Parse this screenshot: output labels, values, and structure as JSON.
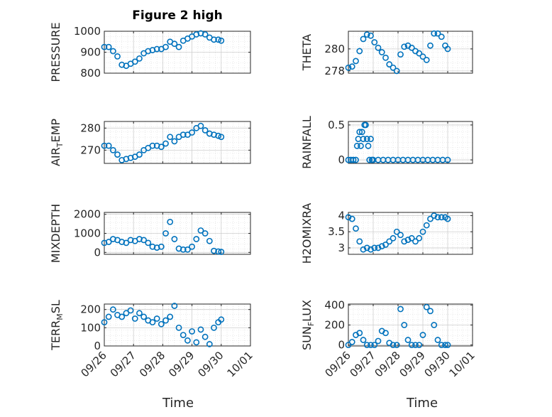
{
  "figure": {
    "title": "Figure 2 high",
    "xlabel_left": "Time",
    "xlabel_right": "Time",
    "marker_color": "#0072bd"
  },
  "chart_data": [
    {
      "type": "scatter",
      "ylabel": "PRESSURE",
      "ylim": [
        800,
        1000
      ],
      "yticks": [
        800,
        900,
        1000
      ],
      "ytick_labels": [
        "800",
        "900",
        "1000"
      ],
      "xlim": [
        0,
        5
      ],
      "xtick_labels": [],
      "x": [
        0.0,
        0.15,
        0.3,
        0.45,
        0.6,
        0.75,
        0.9,
        1.05,
        1.2,
        1.35,
        1.5,
        1.65,
        1.8,
        1.95,
        2.1,
        2.25,
        2.4,
        2.55,
        2.7,
        2.85,
        3.0,
        3.15,
        3.3,
        3.45,
        3.6,
        3.75,
        3.9,
        4.0
      ],
      "y": [
        925,
        925,
        905,
        880,
        840,
        835,
        845,
        855,
        870,
        895,
        905,
        910,
        915,
        915,
        925,
        950,
        940,
        925,
        955,
        965,
        975,
        985,
        990,
        985,
        970,
        960,
        960,
        955
      ]
    },
    {
      "type": "scatter",
      "ylabel": "THETA",
      "ylim": [
        277.8,
        281.6
      ],
      "yticks": [
        278,
        280
      ],
      "ytick_labels": [
        "278",
        "280"
      ],
      "xlim": [
        0,
        5
      ],
      "xtick_labels": [],
      "x": [
        0.0,
        0.15,
        0.3,
        0.45,
        0.6,
        0.75,
        0.9,
        1.05,
        1.2,
        1.35,
        1.5,
        1.65,
        1.8,
        1.95,
        2.1,
        2.25,
        2.4,
        2.55,
        2.7,
        2.85,
        3.0,
        3.15,
        3.3,
        3.45,
        3.6,
        3.75,
        3.9,
        4.0
      ],
      "y": [
        278.3,
        278.4,
        278.9,
        279.8,
        280.9,
        281.3,
        281.2,
        280.6,
        280.1,
        279.7,
        279.2,
        278.6,
        278.3,
        278.0,
        279.5,
        280.2,
        280.3,
        280.1,
        279.8,
        279.6,
        279.3,
        279.0,
        280.3,
        281.4,
        281.4,
        281.1,
        280.3,
        280.0
      ]
    },
    {
      "type": "scatter",
      "ylabel": "AIR_TEMP",
      "ylim": [
        264,
        283
      ],
      "yticks": [
        270,
        280
      ],
      "ytick_labels": [
        "270",
        "280"
      ],
      "xlim": [
        0,
        5
      ],
      "xtick_labels": [],
      "x": [
        0.0,
        0.15,
        0.3,
        0.45,
        0.6,
        0.75,
        0.9,
        1.05,
        1.2,
        1.35,
        1.5,
        1.65,
        1.8,
        1.95,
        2.1,
        2.25,
        2.4,
        2.55,
        2.7,
        2.85,
        3.0,
        3.15,
        3.3,
        3.45,
        3.6,
        3.75,
        3.9,
        4.0
      ],
      "y": [
        272,
        272,
        270,
        268,
        265.5,
        266,
        266.5,
        267,
        268,
        270,
        271,
        272,
        272,
        271.5,
        273,
        276,
        274,
        276,
        277,
        277,
        278,
        280,
        281,
        279,
        277.5,
        277,
        276.5,
        276
      ]
    },
    {
      "type": "scatter",
      "ylabel": "RAINFALL",
      "ylim": [
        -0.05,
        0.55
      ],
      "yticks": [
        0,
        0.5
      ],
      "ytick_labels": [
        "0",
        "0.5"
      ],
      "xlim": [
        0,
        5
      ],
      "xtick_labels": [],
      "x": [
        0.0,
        0.1,
        0.2,
        0.3,
        0.35,
        0.4,
        0.45,
        0.5,
        0.55,
        0.6,
        0.65,
        0.7,
        0.75,
        0.8,
        0.85,
        0.9,
        0.95,
        1.0,
        1.2,
        1.4,
        1.6,
        1.8,
        2.0,
        2.2,
        2.4,
        2.6,
        2.8,
        3.0,
        3.2,
        3.4,
        3.6,
        3.8,
        4.0
      ],
      "y": [
        0,
        0,
        0,
        0,
        0.2,
        0.3,
        0.4,
        0.2,
        0.4,
        0.3,
        0.5,
        0.5,
        0.3,
        0.2,
        0,
        0.3,
        0,
        0,
        0,
        0,
        0,
        0,
        0,
        0,
        0,
        0,
        0,
        0,
        0,
        0,
        0,
        0,
        0
      ]
    },
    {
      "type": "scatter",
      "ylabel": "MIXDEPTH",
      "ylim": [
        -100,
        2100
      ],
      "yticks": [
        0,
        1000,
        2000
      ],
      "ytick_labels": [
        "0",
        "1000",
        "2000"
      ],
      "xlim": [
        0,
        5
      ],
      "xtick_labels": [],
      "x": [
        0.0,
        0.15,
        0.3,
        0.45,
        0.6,
        0.75,
        0.9,
        1.05,
        1.2,
        1.35,
        1.5,
        1.65,
        1.8,
        1.95,
        2.1,
        2.25,
        2.4,
        2.55,
        2.7,
        2.85,
        3.0,
        3.15,
        3.3,
        3.45,
        3.6,
        3.75,
        3.9,
        4.0
      ],
      "y": [
        500,
        550,
        700,
        650,
        550,
        500,
        650,
        600,
        700,
        650,
        500,
        300,
        250,
        300,
        1000,
        1600,
        700,
        200,
        150,
        150,
        300,
        700,
        1150,
        1000,
        600,
        80,
        50,
        30
      ]
    },
    {
      "type": "scatter",
      "ylabel": "H2OMIXRA",
      "ylim": [
        2.8,
        4.1
      ],
      "yticks": [
        3,
        3.5,
        4
      ],
      "ytick_labels": [
        "3",
        "3.5",
        "4"
      ],
      "xlim": [
        0,
        5
      ],
      "xtick_labels": [],
      "x": [
        0.0,
        0.15,
        0.3,
        0.45,
        0.6,
        0.75,
        0.9,
        1.05,
        1.2,
        1.35,
        1.5,
        1.65,
        1.8,
        1.95,
        2.1,
        2.25,
        2.4,
        2.55,
        2.7,
        2.85,
        3.0,
        3.15,
        3.3,
        3.45,
        3.6,
        3.75,
        3.9,
        4.0
      ],
      "y": [
        3.95,
        3.9,
        3.6,
        3.2,
        2.95,
        3.0,
        2.95,
        3.0,
        3.0,
        3.05,
        3.1,
        3.2,
        3.3,
        3.5,
        3.4,
        3.2,
        3.25,
        3.3,
        3.2,
        3.3,
        3.5,
        3.7,
        3.9,
        4.0,
        3.95,
        3.95,
        3.95,
        3.9
      ]
    },
    {
      "type": "scatter",
      "ylabel": "TERR_MSL",
      "ylim": [
        0,
        230
      ],
      "yticks": [
        0,
        100,
        200
      ],
      "ytick_labels": [
        "0",
        "100",
        "200"
      ],
      "xlim": [
        0,
        5
      ],
      "xtick_labels": [
        "09/26",
        "09/27",
        "09/28",
        "09/29",
        "09/30",
        "10/01"
      ],
      "x": [
        0.0,
        0.15,
        0.3,
        0.45,
        0.6,
        0.75,
        0.9,
        1.05,
        1.2,
        1.35,
        1.5,
        1.65,
        1.8,
        1.95,
        2.1,
        2.25,
        2.4,
        2.55,
        2.7,
        2.85,
        3.0,
        3.15,
        3.3,
        3.45,
        3.6,
        3.75,
        3.9,
        4.0
      ],
      "y": [
        130,
        160,
        200,
        170,
        160,
        180,
        195,
        150,
        180,
        160,
        140,
        130,
        150,
        120,
        140,
        160,
        220,
        100,
        60,
        30,
        80,
        20,
        90,
        50,
        10,
        100,
        130,
        145
      ]
    },
    {
      "type": "scatter",
      "ylabel": "SUN_FLUX",
      "ylim": [
        -10,
        410
      ],
      "yticks": [
        0,
        200,
        400
      ],
      "ytick_labels": [
        "0",
        "200",
        "400"
      ],
      "xlim": [
        0,
        5
      ],
      "xtick_labels": [
        "09/26",
        "09/27",
        "09/28",
        "09/29",
        "09/30",
        "10/01"
      ],
      "x": [
        0.0,
        0.15,
        0.3,
        0.45,
        0.6,
        0.75,
        0.9,
        1.05,
        1.2,
        1.35,
        1.5,
        1.65,
        1.8,
        1.95,
        2.1,
        2.25,
        2.4,
        2.55,
        2.7,
        2.85,
        3.0,
        3.15,
        3.3,
        3.45,
        3.6,
        3.75,
        3.9,
        4.0
      ],
      "y": [
        0,
        30,
        100,
        120,
        50,
        0,
        0,
        0,
        40,
        140,
        120,
        20,
        0,
        0,
        360,
        200,
        50,
        0,
        0,
        0,
        100,
        380,
        340,
        200,
        50,
        0,
        0,
        0
      ]
    }
  ]
}
